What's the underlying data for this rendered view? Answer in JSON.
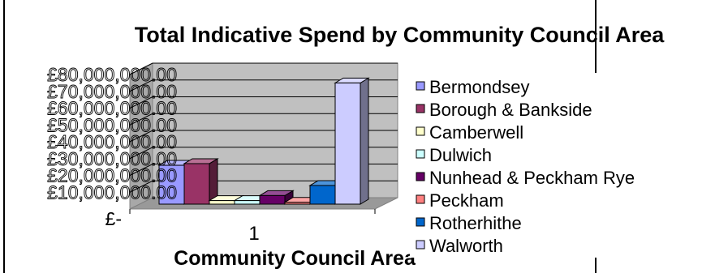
{
  "chart_data": {
    "type": "bar",
    "style": "3d-clustered-column",
    "title": "Total Indicative Spend by Community Council Area",
    "xlabel": "Community Council Area",
    "ylabel": "",
    "categories": [
      "1"
    ],
    "ylim": [
      0,
      80000000
    ],
    "yticks": [
      "£-",
      "£10,000,000.00",
      "£20,000,000.00",
      "£30,000,000.00",
      "£40,000,000.00",
      "£50,000,000.00",
      "£60,000,000.00",
      "£70,000,000.00",
      "£80,000,000.00"
    ],
    "grid": true,
    "legend_position": "right",
    "series": [
      {
        "name": "Bermondsey",
        "values": [
          26000000
        ],
        "color": "#9999ff"
      },
      {
        "name": "Borough & Bankside",
        "values": [
          27000000
        ],
        "color": "#993366"
      },
      {
        "name": "Camberwell",
        "values": [
          5000000
        ],
        "color": "#ffffcc"
      },
      {
        "name": "Dulwich",
        "values": [
          5000000
        ],
        "color": "#ccffff"
      },
      {
        "name": "Nunhead & Peckham Rye",
        "values": [
          8000000
        ],
        "color": "#660066"
      },
      {
        "name": "Peckham",
        "values": [
          4000000
        ],
        "color": "#ff8080"
      },
      {
        "name": "Rotherhithe",
        "values": [
          14000000
        ],
        "color": "#0066cc"
      },
      {
        "name": "Walworth",
        "values": [
          75000000
        ],
        "color": "#ccccff"
      }
    ]
  }
}
